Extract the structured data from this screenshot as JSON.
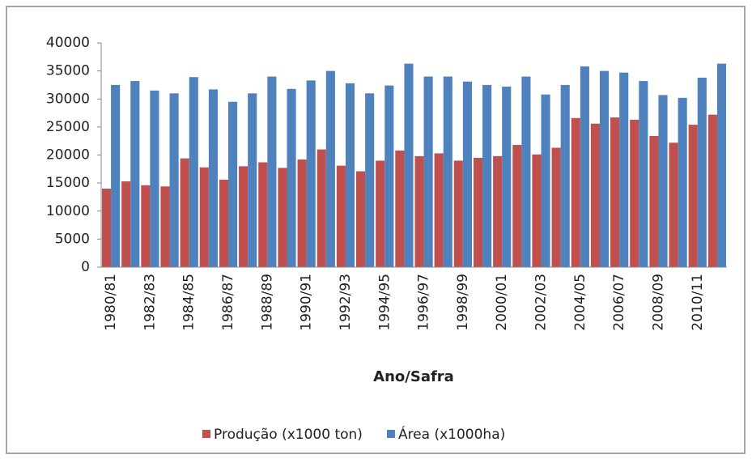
{
  "chart_data": {
    "type": "bar",
    "x_label": "Ano/Safra",
    "categories": [
      "1980/81",
      null,
      "1982/83",
      null,
      "1984/85",
      null,
      "1986/87",
      null,
      "1988/89",
      null,
      "1990/91",
      null,
      "1992/93",
      null,
      "1994/95",
      null,
      "1996/97",
      null,
      "1998/99",
      null,
      "2000/01",
      null,
      "2002/03",
      null,
      "2004/05",
      null,
      "2006/07",
      null,
      "2008/09",
      null,
      "2010/11",
      null
    ],
    "series": [
      {
        "name": "Produção (x1000 ton)",
        "color": "#c0504d",
        "values": [
          14000,
          15300,
          14600,
          14400,
          19400,
          17800,
          15600,
          18000,
          18700,
          17700,
          19200,
          21000,
          18100,
          17100,
          19000,
          20800,
          19800,
          20300,
          19000,
          19500,
          19800,
          21800,
          20100,
          21300,
          26600,
          25600,
          26700,
          26300,
          23400,
          22200,
          25400,
          27200
        ]
      },
      {
        "name": "Área (x1000ha)",
        "color": "#4f81bd",
        "values": [
          32500,
          33200,
          31500,
          31000,
          33900,
          31700,
          29500,
          31000,
          34000,
          31800,
          33300,
          35000,
          32800,
          31000,
          32400,
          36300,
          34000,
          34000,
          33100,
          32500,
          32200,
          34000,
          30800,
          32500,
          35800,
          35000,
          34700,
          33200,
          30700,
          30200,
          33800,
          36300
        ]
      }
    ],
    "ylim": [
      0,
      40000
    ],
    "yticks": [
      0,
      5000,
      10000,
      15000,
      20000,
      25000,
      30000,
      35000,
      40000
    ],
    "grid": false,
    "legend": "bottom"
  }
}
